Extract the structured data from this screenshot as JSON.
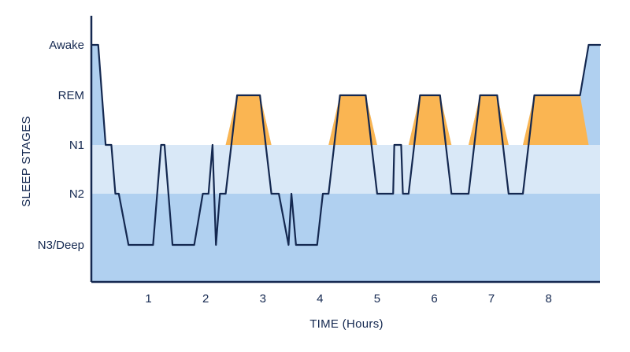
{
  "chart_data": {
    "type": "line",
    "title": "",
    "xlabel": "TIME (Hours)",
    "ylabel": "SLEEP STAGES",
    "xlim": [
      0,
      8.9
    ],
    "x_ticks": [
      1,
      2,
      3,
      4,
      5,
      6,
      7,
      8
    ],
    "y_levels": [
      "N3/Deep",
      "N2",
      "N1",
      "REM",
      "Awake"
    ],
    "grid": false,
    "legend": "none",
    "colors": {
      "line": "#142850",
      "deep_fill": "#b0d0f0",
      "light_fill": "#d9e8f7",
      "rem_fill": "#fab552",
      "axis": "#142850"
    },
    "series": [
      {
        "points": [
          [
            0,
            4
          ],
          [
            0.12,
            4
          ],
          [
            0.25,
            2
          ],
          [
            0.35,
            2
          ],
          [
            0.42,
            1
          ],
          [
            0.48,
            1
          ],
          [
            0.65,
            0
          ],
          [
            1.08,
            0
          ],
          [
            1.22,
            2
          ],
          [
            1.28,
            2
          ],
          [
            1.42,
            0
          ],
          [
            1.48,
            0
          ],
          [
            1.58,
            0
          ],
          [
            1.8,
            0
          ],
          [
            1.95,
            1
          ],
          [
            2.05,
            1
          ],
          [
            2.12,
            2
          ],
          [
            2.18,
            0
          ],
          [
            2.25,
            1
          ],
          [
            2.35,
            1
          ],
          [
            2.55,
            3
          ],
          [
            2.95,
            3
          ],
          [
            3.15,
            1
          ],
          [
            3.28,
            1
          ],
          [
            3.45,
            0
          ],
          [
            3.5,
            1
          ],
          [
            3.58,
            0
          ],
          [
            3.95,
            0
          ],
          [
            4.05,
            1
          ],
          [
            4.15,
            1
          ],
          [
            4.35,
            3
          ],
          [
            4.8,
            3
          ],
          [
            5.0,
            1
          ],
          [
            5.28,
            1
          ],
          [
            5.3,
            2
          ],
          [
            5.42,
            2
          ],
          [
            5.45,
            1
          ],
          [
            5.55,
            1
          ],
          [
            5.75,
            3
          ],
          [
            6.1,
            3
          ],
          [
            6.3,
            1
          ],
          [
            6.6,
            1
          ],
          [
            6.8,
            3
          ],
          [
            7.1,
            3
          ],
          [
            7.3,
            1
          ],
          [
            7.55,
            1
          ],
          [
            7.75,
            3
          ],
          [
            8.55,
            3
          ],
          [
            8.7,
            4
          ],
          [
            8.9,
            4
          ]
        ]
      }
    ]
  }
}
